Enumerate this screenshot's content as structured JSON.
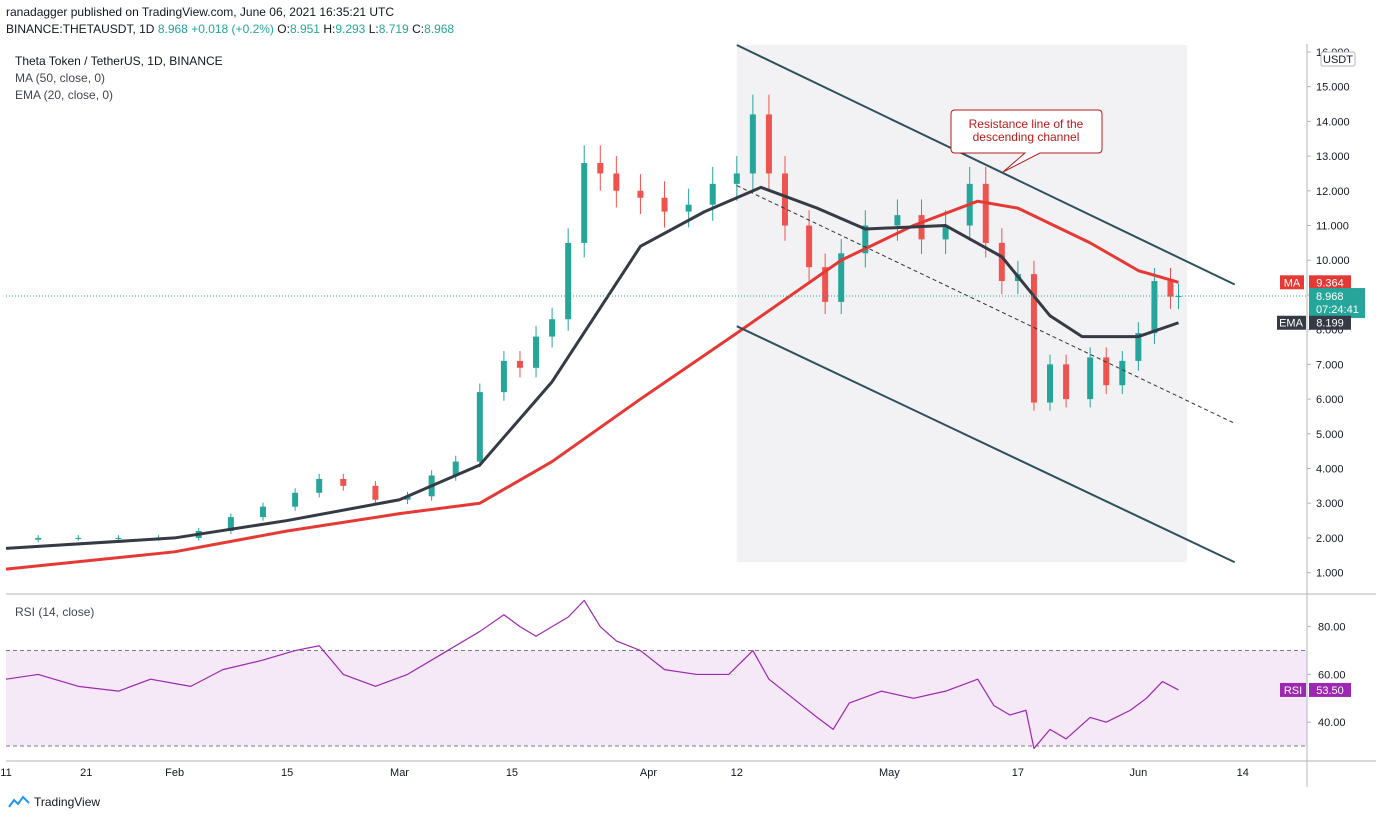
{
  "header": {
    "publisher": "ranadagger published on TradingView.com, June 06, 2021 16:35:21 UTC",
    "symbol": "BINANCE:THETAUSDT, 1D",
    "price": "8.968",
    "change": "+0.018 (+0.2%)",
    "open": "8.951",
    "high": "9.293",
    "low": "8.719",
    "close": "8.968"
  },
  "legend": {
    "title": "Theta Token / TetherUS, 1D, BINANCE",
    "ma": "MA (50, close, 0)",
    "ema": "EMA (20, close, 0)",
    "rsi": "RSI (14, close)"
  },
  "colors": {
    "up": "#26a69a",
    "down": "#ef5350",
    "ma": "#e53935",
    "ema": "#363a45",
    "rsi": "#9c27b0",
    "channel": "#2f4f5f"
  },
  "chart_data": [
    {
      "type": "candlestick",
      "title": "Theta Token / TetherUS, 1D, BINANCE",
      "currency": "USDT",
      "y_ticks": [
        "1.000",
        "2.000",
        "3.000",
        "4.000",
        "5.000",
        "6.000",
        "7.000",
        "8.000",
        "9.000",
        "10.000",
        "11.000",
        "12.000",
        "13.000",
        "14.000",
        "15.000",
        "16.000"
      ],
      "ylim": [
        0.5,
        16.2
      ],
      "x_ticks": [
        "11",
        "21",
        "Feb",
        "15",
        "Mar",
        "15",
        "Apr",
        "12",
        "May",
        "17",
        "Jun",
        "14"
      ],
      "xlim": [
        "2021-01-11",
        "2021-06-22"
      ],
      "close_series": [
        [
          "2021-01-11",
          1.95
        ],
        [
          "2021-01-15",
          2.0
        ],
        [
          "2021-01-20",
          2.0
        ],
        [
          "2021-01-25",
          2.0
        ],
        [
          "2021-01-30",
          2.0
        ],
        [
          "2021-02-04",
          2.2
        ],
        [
          "2021-02-08",
          2.6
        ],
        [
          "2021-02-12",
          2.9
        ],
        [
          "2021-02-16",
          3.3
        ],
        [
          "2021-02-19",
          3.7
        ],
        [
          "2021-02-22",
          3.5
        ],
        [
          "2021-02-26",
          3.1
        ],
        [
          "2021-03-02",
          3.2
        ],
        [
          "2021-03-05",
          3.8
        ],
        [
          "2021-03-08",
          4.2
        ],
        [
          "2021-03-11",
          6.2
        ],
        [
          "2021-03-14",
          7.1
        ],
        [
          "2021-03-16",
          6.9
        ],
        [
          "2021-03-18",
          7.8
        ],
        [
          "2021-03-20",
          8.3
        ],
        [
          "2021-03-22",
          10.5
        ],
        [
          "2021-03-24",
          12.8
        ],
        [
          "2021-03-26",
          12.5
        ],
        [
          "2021-03-28",
          12.0
        ],
        [
          "2021-03-31",
          11.8
        ],
        [
          "2021-04-03",
          11.4
        ],
        [
          "2021-04-06",
          11.6
        ],
        [
          "2021-04-09",
          12.2
        ],
        [
          "2021-04-12",
          12.5
        ],
        [
          "2021-04-14",
          14.2
        ],
        [
          "2021-04-16",
          12.5
        ],
        [
          "2021-04-18",
          11.0
        ],
        [
          "2021-04-21",
          9.8
        ],
        [
          "2021-04-23",
          8.8
        ],
        [
          "2021-04-25",
          10.2
        ],
        [
          "2021-04-28",
          11.0
        ],
        [
          "2021-05-02",
          11.3
        ],
        [
          "2021-05-05",
          10.6
        ],
        [
          "2021-05-08",
          11.0
        ],
        [
          "2021-05-11",
          12.2
        ],
        [
          "2021-05-13",
          10.5
        ],
        [
          "2021-05-15",
          9.4
        ],
        [
          "2021-05-17",
          9.6
        ],
        [
          "2021-05-19",
          5.9
        ],
        [
          "2021-05-21",
          7.0
        ],
        [
          "2021-05-23",
          6.0
        ],
        [
          "2021-05-26",
          7.2
        ],
        [
          "2021-05-28",
          6.4
        ],
        [
          "2021-05-30",
          7.1
        ],
        [
          "2021-06-01",
          7.9
        ],
        [
          "2021-06-03",
          9.4
        ],
        [
          "2021-06-05",
          8.95
        ],
        [
          "2021-06-06",
          8.968
        ]
      ],
      "ma_50": [
        [
          "2021-01-11",
          1.1
        ],
        [
          "2021-02-01",
          1.6
        ],
        [
          "2021-02-15",
          2.2
        ],
        [
          "2021-03-01",
          2.7
        ],
        [
          "2021-03-11",
          3.0
        ],
        [
          "2021-03-20",
          4.2
        ],
        [
          "2021-03-31",
          6.0
        ],
        [
          "2021-04-12",
          7.9
        ],
        [
          "2021-04-25",
          10.0
        ],
        [
          "2021-05-04",
          11.0
        ],
        [
          "2021-05-12",
          11.7
        ],
        [
          "2021-05-17",
          11.5
        ],
        [
          "2021-05-26",
          10.5
        ],
        [
          "2021-06-01",
          9.7
        ],
        [
          "2021-06-06",
          9.364
        ]
      ],
      "ema_20": [
        [
          "2021-01-11",
          1.7
        ],
        [
          "2021-02-01",
          2.0
        ],
        [
          "2021-02-15",
          2.5
        ],
        [
          "2021-03-01",
          3.1
        ],
        [
          "2021-03-11",
          4.1
        ],
        [
          "2021-03-20",
          6.5
        ],
        [
          "2021-03-31",
          10.4
        ],
        [
          "2021-04-08",
          11.4
        ],
        [
          "2021-04-15",
          12.1
        ],
        [
          "2021-04-22",
          11.5
        ],
        [
          "2021-04-28",
          10.9
        ],
        [
          "2021-05-08",
          11.0
        ],
        [
          "2021-05-15",
          10.1
        ],
        [
          "2021-05-21",
          8.4
        ],
        [
          "2021-05-25",
          7.8
        ],
        [
          "2021-06-01",
          7.8
        ],
        [
          "2021-06-06",
          8.199
        ]
      ],
      "channel_upper": [
        [
          "2021-04-12",
          16.2
        ],
        [
          "2021-06-13",
          9.3
        ]
      ],
      "channel_lower": [
        [
          "2021-04-12",
          8.1
        ],
        [
          "2021-06-13",
          1.3
        ]
      ],
      "channel_mid": [
        [
          "2021-04-12",
          12.15
        ],
        [
          "2021-06-13",
          5.3
        ]
      ],
      "last_price": "8.968",
      "countdown": "07:24:41",
      "ma_value": "9.364",
      "ema_value": "8.199",
      "ma_tag": "MA",
      "ema_tag": "EMA",
      "annotation": "Resistance line of the descending channel"
    },
    {
      "type": "line",
      "title": "RSI (14, close)",
      "y_ticks": [
        "40.00",
        "60.00",
        "80.00"
      ],
      "ylim": [
        25,
        92
      ],
      "band": [
        30,
        70
      ],
      "series": [
        {
          "name": "RSI",
          "values": [
            [
              "2021-01-11",
              58
            ],
            [
              "2021-01-15",
              60
            ],
            [
              "2021-01-20",
              55
            ],
            [
              "2021-01-25",
              53
            ],
            [
              "2021-01-29",
              58
            ],
            [
              "2021-02-03",
              55
            ],
            [
              "2021-02-07",
              62
            ],
            [
              "2021-02-12",
              66
            ],
            [
              "2021-02-16",
              70
            ],
            [
              "2021-02-19",
              72
            ],
            [
              "2021-02-22",
              60
            ],
            [
              "2021-02-26",
              55
            ],
            [
              "2021-03-02",
              60
            ],
            [
              "2021-03-06",
              68
            ],
            [
              "2021-03-11",
              78
            ],
            [
              "2021-03-14",
              85
            ],
            [
              "2021-03-16",
              80
            ],
            [
              "2021-03-18",
              76
            ],
            [
              "2021-03-20",
              80
            ],
            [
              "2021-03-22",
              84
            ],
            [
              "2021-03-24",
              91
            ],
            [
              "2021-03-26",
              80
            ],
            [
              "2021-03-28",
              74
            ],
            [
              "2021-03-31",
              70
            ],
            [
              "2021-04-03",
              62
            ],
            [
              "2021-04-07",
              60
            ],
            [
              "2021-04-11",
              60
            ],
            [
              "2021-04-14",
              70
            ],
            [
              "2021-04-16",
              58
            ],
            [
              "2021-04-19",
              50
            ],
            [
              "2021-04-22",
              42
            ],
            [
              "2021-04-24",
              37
            ],
            [
              "2021-04-26",
              48
            ],
            [
              "2021-04-30",
              53
            ],
            [
              "2021-05-04",
              50
            ],
            [
              "2021-05-08",
              53
            ],
            [
              "2021-05-12",
              58
            ],
            [
              "2021-05-14",
              47
            ],
            [
              "2021-05-16",
              43
            ],
            [
              "2021-05-18",
              45
            ],
            [
              "2021-05-19",
              29
            ],
            [
              "2021-05-21",
              37
            ],
            [
              "2021-05-23",
              33
            ],
            [
              "2021-05-26",
              42
            ],
            [
              "2021-05-28",
              40
            ],
            [
              "2021-05-31",
              45
            ],
            [
              "2021-06-02",
              50
            ],
            [
              "2021-06-04",
              57
            ],
            [
              "2021-06-06",
              53.5
            ]
          ]
        }
      ],
      "last_value": "53.50",
      "tag": "RSI"
    }
  ],
  "footer": {
    "brand": "TradingView"
  }
}
